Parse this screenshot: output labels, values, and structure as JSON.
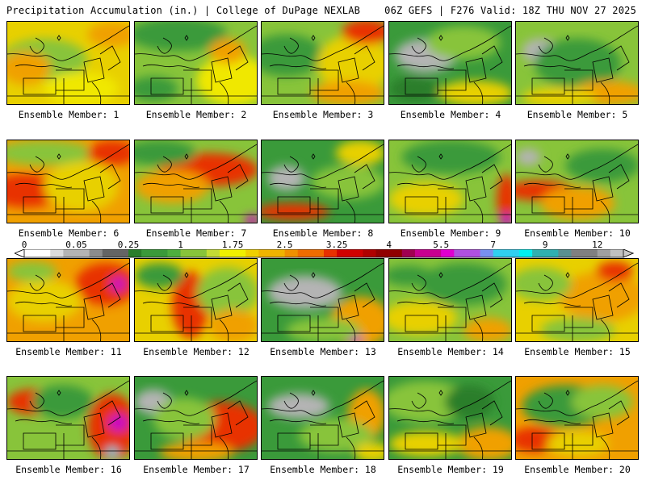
{
  "header": {
    "title_left": "Precipitation Accumulation (in.) | College of DuPage NEXLAB",
    "title_right": "06Z GEFS | F276 Valid: 18Z THU NOV 27 2025"
  },
  "members": [
    {
      "label": "Ensemble Member: 1",
      "base": "#e8d000",
      "blobs": [
        [
          "#88c43a",
          0.3,
          0.45,
          0.35,
          0.25
        ],
        [
          "#f0a000",
          0.15,
          0.55,
          0.2,
          0.2
        ],
        [
          "#f0a000",
          0.85,
          0.15,
          0.2,
          0.15
        ],
        [
          "#f0e800",
          0.6,
          0.8,
          0.3,
          0.2
        ]
      ]
    },
    {
      "label": "Ensemble Member: 2",
      "base": "#88c43a",
      "blobs": [
        [
          "#3a9a3a",
          0.35,
          0.15,
          0.4,
          0.2
        ],
        [
          "#f0e800",
          0.8,
          0.7,
          0.3,
          0.3
        ],
        [
          "#f0a000",
          0.75,
          0.35,
          0.15,
          0.15
        ],
        [
          "#3a9a3a",
          0.15,
          0.8,
          0.2,
          0.15
        ]
      ]
    },
    {
      "label": "Ensemble Member: 3",
      "base": "#88c43a",
      "blobs": [
        [
          "#3a9a3a",
          0.2,
          0.4,
          0.3,
          0.25
        ],
        [
          "#e8d000",
          0.75,
          0.5,
          0.3,
          0.35
        ],
        [
          "#e83000",
          0.85,
          0.12,
          0.2,
          0.15
        ],
        [
          "#f0a000",
          0.7,
          0.85,
          0.3,
          0.15
        ]
      ]
    },
    {
      "label": "Ensemble Member: 4",
      "base": "#3a9a3a",
      "blobs": [
        [
          "#b4b4b4",
          0.3,
          0.4,
          0.25,
          0.2
        ],
        [
          "#88c43a",
          0.6,
          0.25,
          0.3,
          0.2
        ],
        [
          "#e8d000",
          0.7,
          0.85,
          0.3,
          0.15
        ],
        [
          "#2a7e2a",
          0.2,
          0.8,
          0.2,
          0.15
        ]
      ]
    },
    {
      "label": "Ensemble Member: 5",
      "base": "#88c43a",
      "blobs": [
        [
          "#b4b4b4",
          0.2,
          0.35,
          0.15,
          0.15
        ],
        [
          "#3a9a3a",
          0.5,
          0.5,
          0.35,
          0.3
        ],
        [
          "#f0a000",
          0.75,
          0.85,
          0.3,
          0.15
        ],
        [
          "#e8d000",
          0.35,
          0.9,
          0.3,
          0.12
        ]
      ]
    },
    {
      "label": "Ensemble Member: 6",
      "base": "#f0a000",
      "blobs": [
        [
          "#e83000",
          0.15,
          0.6,
          0.3,
          0.2
        ],
        [
          "#88c43a",
          0.3,
          0.15,
          0.4,
          0.15
        ],
        [
          "#e8d000",
          0.6,
          0.55,
          0.3,
          0.3
        ],
        [
          "#e83000",
          0.85,
          0.15,
          0.2,
          0.15
        ]
      ]
    },
    {
      "label": "Ensemble Member: 7",
      "base": "#88c43a",
      "blobs": [
        [
          "#e83000",
          0.6,
          0.35,
          0.4,
          0.2
        ],
        [
          "#f0a000",
          0.3,
          0.55,
          0.3,
          0.2
        ],
        [
          "#3a9a3a",
          0.2,
          0.15,
          0.3,
          0.15
        ],
        [
          "#c800c8",
          0.95,
          0.95,
          0.06,
          0.06
        ]
      ]
    },
    {
      "label": "Ensemble Member: 8",
      "base": "#3a9a3a",
      "blobs": [
        [
          "#b4b4b4",
          0.2,
          0.45,
          0.15,
          0.15
        ],
        [
          "#88c43a",
          0.7,
          0.5,
          0.3,
          0.2
        ],
        [
          "#e83000",
          0.25,
          0.85,
          0.3,
          0.1
        ],
        [
          "#e8d000",
          0.8,
          0.15,
          0.2,
          0.15
        ]
      ]
    },
    {
      "label": "Ensemble Member: 9",
      "base": "#88c43a",
      "blobs": [
        [
          "#3a9a3a",
          0.5,
          0.2,
          0.4,
          0.2
        ],
        [
          "#e83000",
          0.95,
          0.7,
          0.08,
          0.3
        ],
        [
          "#c800c8",
          0.95,
          0.95,
          0.05,
          0.08
        ],
        [
          "#e8d000",
          0.3,
          0.7,
          0.3,
          0.2
        ]
      ]
    },
    {
      "label": "Ensemble Member: 10",
      "base": "#88c43a",
      "blobs": [
        [
          "#e83000",
          0.2,
          0.6,
          0.3,
          0.12
        ],
        [
          "#b4b4b4",
          0.1,
          0.2,
          0.1,
          0.1
        ],
        [
          "#f0a000",
          0.5,
          0.75,
          0.3,
          0.2
        ],
        [
          "#3a9a3a",
          0.7,
          0.3,
          0.3,
          0.2
        ]
      ]
    },
    {
      "label": "Ensemble Member: 11",
      "base": "#f0a000",
      "blobs": [
        [
          "#e83000",
          0.8,
          0.3,
          0.25,
          0.25
        ],
        [
          "#c800c8",
          0.9,
          0.3,
          0.06,
          0.08
        ],
        [
          "#e8d000",
          0.3,
          0.5,
          0.3,
          0.25
        ],
        [
          "#88c43a",
          0.2,
          0.15,
          0.2,
          0.12
        ]
      ]
    },
    {
      "label": "Ensemble Member: 12",
      "base": "#e8d000",
      "blobs": [
        [
          "#e83000",
          0.45,
          0.55,
          0.15,
          0.4
        ],
        [
          "#88c43a",
          0.75,
          0.4,
          0.25,
          0.3
        ],
        [
          "#3a9a3a",
          0.2,
          0.2,
          0.2,
          0.15
        ],
        [
          "#f0a000",
          0.8,
          0.8,
          0.2,
          0.2
        ]
      ]
    },
    {
      "label": "Ensemble Member: 13",
      "base": "#3a9a3a",
      "blobs": [
        [
          "#b4b4b4",
          0.35,
          0.4,
          0.3,
          0.2
        ],
        [
          "#f0a000",
          0.8,
          0.75,
          0.25,
          0.3
        ],
        [
          "#c800c8",
          0.75,
          0.95,
          0.06,
          0.06
        ],
        [
          "#88c43a",
          0.5,
          0.85,
          0.3,
          0.15
        ]
      ]
    },
    {
      "label": "Ensemble Member: 14",
      "base": "#88c43a",
      "blobs": [
        [
          "#3a9a3a",
          0.6,
          0.3,
          0.35,
          0.25
        ],
        [
          "#e8d000",
          0.25,
          0.7,
          0.3,
          0.2
        ],
        [
          "#f0a000",
          0.8,
          0.85,
          0.2,
          0.15
        ],
        [
          "#3a9a3a",
          0.15,
          0.2,
          0.2,
          0.12
        ]
      ]
    },
    {
      "label": "Ensemble Member: 15",
      "base": "#e8d000",
      "blobs": [
        [
          "#f0a000",
          0.7,
          0.45,
          0.35,
          0.3
        ],
        [
          "#88c43a",
          0.2,
          0.3,
          0.25,
          0.2
        ],
        [
          "#e83000",
          0.8,
          0.15,
          0.15,
          0.12
        ],
        [
          "#88c43a",
          0.5,
          0.85,
          0.3,
          0.15
        ]
      ]
    },
    {
      "label": "Ensemble Member: 16",
      "base": "#88c43a",
      "blobs": [
        [
          "#e83000",
          0.2,
          0.3,
          0.2,
          0.15
        ],
        [
          "#e83000",
          0.85,
          0.6,
          0.2,
          0.4
        ],
        [
          "#c800c8",
          0.9,
          0.55,
          0.08,
          0.1
        ],
        [
          "#00d4e0",
          0.85,
          0.9,
          0.05,
          0.06
        ],
        [
          "#3a9a3a",
          0.45,
          0.3,
          0.25,
          0.2
        ]
      ]
    },
    {
      "label": "Ensemble Member: 17",
      "base": "#3a9a3a",
      "blobs": [
        [
          "#e83000",
          0.7,
          0.6,
          0.35,
          0.3
        ],
        [
          "#b4b4b4",
          0.15,
          0.3,
          0.15,
          0.15
        ],
        [
          "#88c43a",
          0.4,
          0.5,
          0.25,
          0.25
        ],
        [
          "#f0a000",
          0.5,
          0.9,
          0.3,
          0.12
        ]
      ]
    },
    {
      "label": "Ensemble Member: 18",
      "base": "#3a9a3a",
      "blobs": [
        [
          "#b4b4b4",
          0.3,
          0.35,
          0.25,
          0.15
        ],
        [
          "#f0a000",
          0.85,
          0.45,
          0.15,
          0.3
        ],
        [
          "#88c43a",
          0.6,
          0.7,
          0.3,
          0.2
        ],
        [
          "#e8d000",
          0.9,
          0.9,
          0.15,
          0.12
        ]
      ]
    },
    {
      "label": "Ensemble Member: 19",
      "base": "#3a9a3a",
      "blobs": [
        [
          "#88c43a",
          0.3,
          0.3,
          0.35,
          0.25
        ],
        [
          "#f0a000",
          0.8,
          0.8,
          0.25,
          0.2
        ],
        [
          "#e8d000",
          0.3,
          0.8,
          0.3,
          0.15
        ],
        [
          "#2a7e2a",
          0.65,
          0.3,
          0.2,
          0.2
        ]
      ]
    },
    {
      "label": "Ensemble Member: 20",
      "base": "#f0a000",
      "blobs": [
        [
          "#3a9a3a",
          0.4,
          0.35,
          0.35,
          0.25
        ],
        [
          "#e83000",
          0.15,
          0.75,
          0.2,
          0.15
        ],
        [
          "#88c43a",
          0.7,
          0.3,
          0.25,
          0.2
        ],
        [
          "#e8d000",
          0.5,
          0.8,
          0.25,
          0.15
        ]
      ]
    }
  ],
  "colorbar": {
    "colors": [
      "#ffffff",
      "#dcdcdc",
      "#b4b4b4",
      "#8c8c8c",
      "#646464",
      "#2a7e2a",
      "#3a9a3a",
      "#4eae3e",
      "#88c43a",
      "#c4dc34",
      "#f0f000",
      "#f0d000",
      "#f0b400",
      "#f09000",
      "#f06c00",
      "#e83000",
      "#d00000",
      "#b00000",
      "#900000",
      "#a00050",
      "#c80090",
      "#e000d0",
      "#b050e0",
      "#7890f0",
      "#30d0f0",
      "#00f0f0",
      "#30b0b0",
      "#5a9090",
      "#808080",
      "#a0a0a0",
      "#c0c0c0"
    ],
    "ticks": [
      {
        "label": "0",
        "index": 0
      },
      {
        "label": "0.05",
        "index": 4
      },
      {
        "label": "0.25",
        "index": 8
      },
      {
        "label": "1",
        "index": 12
      },
      {
        "label": "1.75",
        "index": 16
      },
      {
        "label": "2.5",
        "index": 20
      },
      {
        "label": "3.25",
        "index": 24
      },
      {
        "label": "4",
        "index": 28
      },
      {
        "label": "5.5",
        "index": 32
      },
      {
        "label": "7",
        "index": 36
      },
      {
        "label": "9",
        "index": 40
      },
      {
        "label": "12",
        "index": 44
      }
    ],
    "ncells": 46
  }
}
